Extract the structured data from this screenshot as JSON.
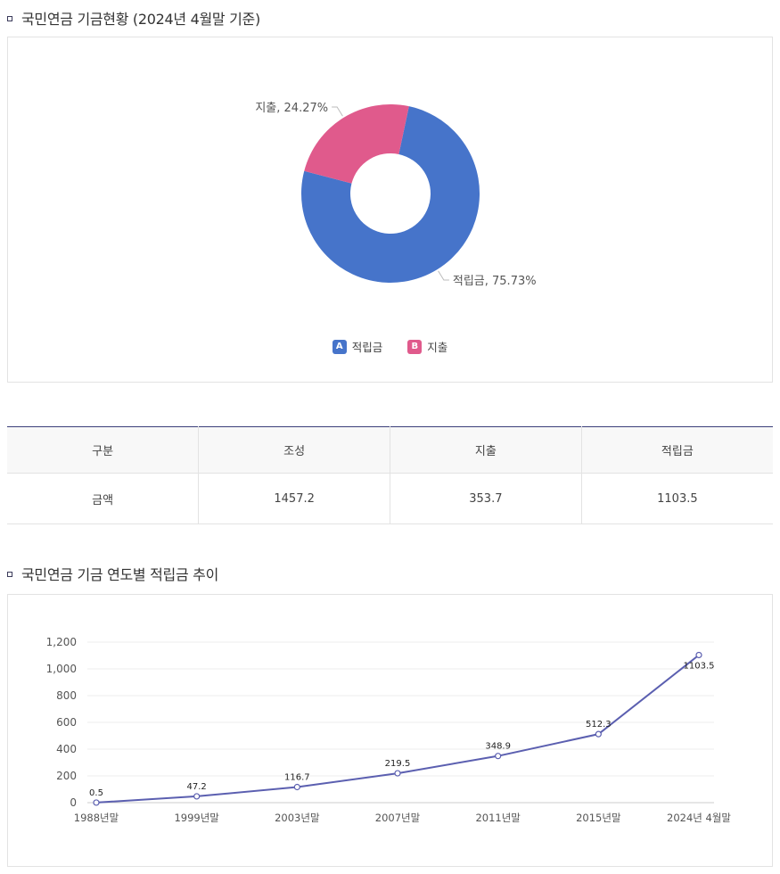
{
  "section1": {
    "title": "국민연금 기금현황 (2024년 4월말 기준)"
  },
  "donut": {
    "chart_data": {
      "type": "pie",
      "slices": [
        {
          "label": "적립금",
          "value": 75.73,
          "color": "#4674ca",
          "badge": "A",
          "data_label": "적립금, 75.73%"
        },
        {
          "label": "지출",
          "value": 24.27,
          "color": "#e05a8c",
          "badge": "B",
          "data_label": "지출, 24.27%"
        }
      ],
      "legend_position": "bottom"
    }
  },
  "table": {
    "headers": [
      "구분",
      "조성",
      "지출",
      "적립금"
    ],
    "rows": [
      [
        "금액",
        "1457.2",
        "353.7",
        "1103.5"
      ]
    ]
  },
  "section2": {
    "title": "국민연금 기금 연도별 적립금 추이"
  },
  "line": {
    "chart_data": {
      "type": "line",
      "categories": [
        "1988년말",
        "1999년말",
        "2003년말",
        "2007년말",
        "2011년말",
        "2015년말",
        "2024년 4월말"
      ],
      "series": [
        {
          "values": [
            0.5,
            47.2,
            116.7,
            219.5,
            348.9,
            512.3,
            1103.5
          ],
          "color": "#5b5fb0"
        }
      ],
      "data_labels": [
        "0.5",
        "47.2",
        "116.7",
        "219.5",
        "348.9",
        "512.3",
        "1103.5"
      ],
      "ylim": [
        0,
        1200
      ],
      "yticks": [
        0,
        200,
        400,
        600,
        800,
        1000,
        1200
      ],
      "ytick_labels": [
        "0",
        "200",
        "400",
        "600",
        "800",
        "1,000",
        "1,200"
      ],
      "grid": true
    }
  }
}
